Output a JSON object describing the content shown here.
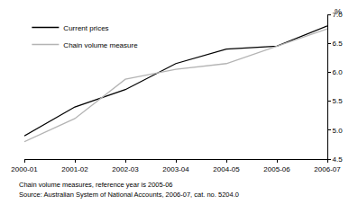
{
  "chart_data": {
    "type": "line",
    "categories": [
      "2000-01",
      "2001-02",
      "2002-03",
      "2003-04",
      "2004-05",
      "2005-06",
      "2006-07"
    ],
    "series": [
      {
        "name": "Current prices",
        "color": "#000000",
        "values": [
          4.9,
          5.4,
          5.7,
          6.15,
          6.4,
          6.45,
          6.8
        ]
      },
      {
        "name": "Chain volume measure",
        "color": "#b4b4b4",
        "values": [
          4.8,
          5.2,
          5.88,
          6.05,
          6.15,
          6.45,
          6.75
        ]
      }
    ],
    "y_label": "%",
    "ylim": [
      4.5,
      7.0
    ],
    "yticks": [
      4.5,
      {
        "value": 5,
        "label": "5.0"
      },
      5.5,
      {
        "value": 6,
        "label": "6.0"
      },
      6.5,
      {
        "value": 7,
        "label": "7.0"
      }
    ],
    "grid": false,
    "legend": "top left",
    "annotations": [
      "Chain volume measures, reference year is 2005-06",
      "Source: Australian System of National Accounts, 2006-07, cat. no. 5204.0"
    ]
  }
}
